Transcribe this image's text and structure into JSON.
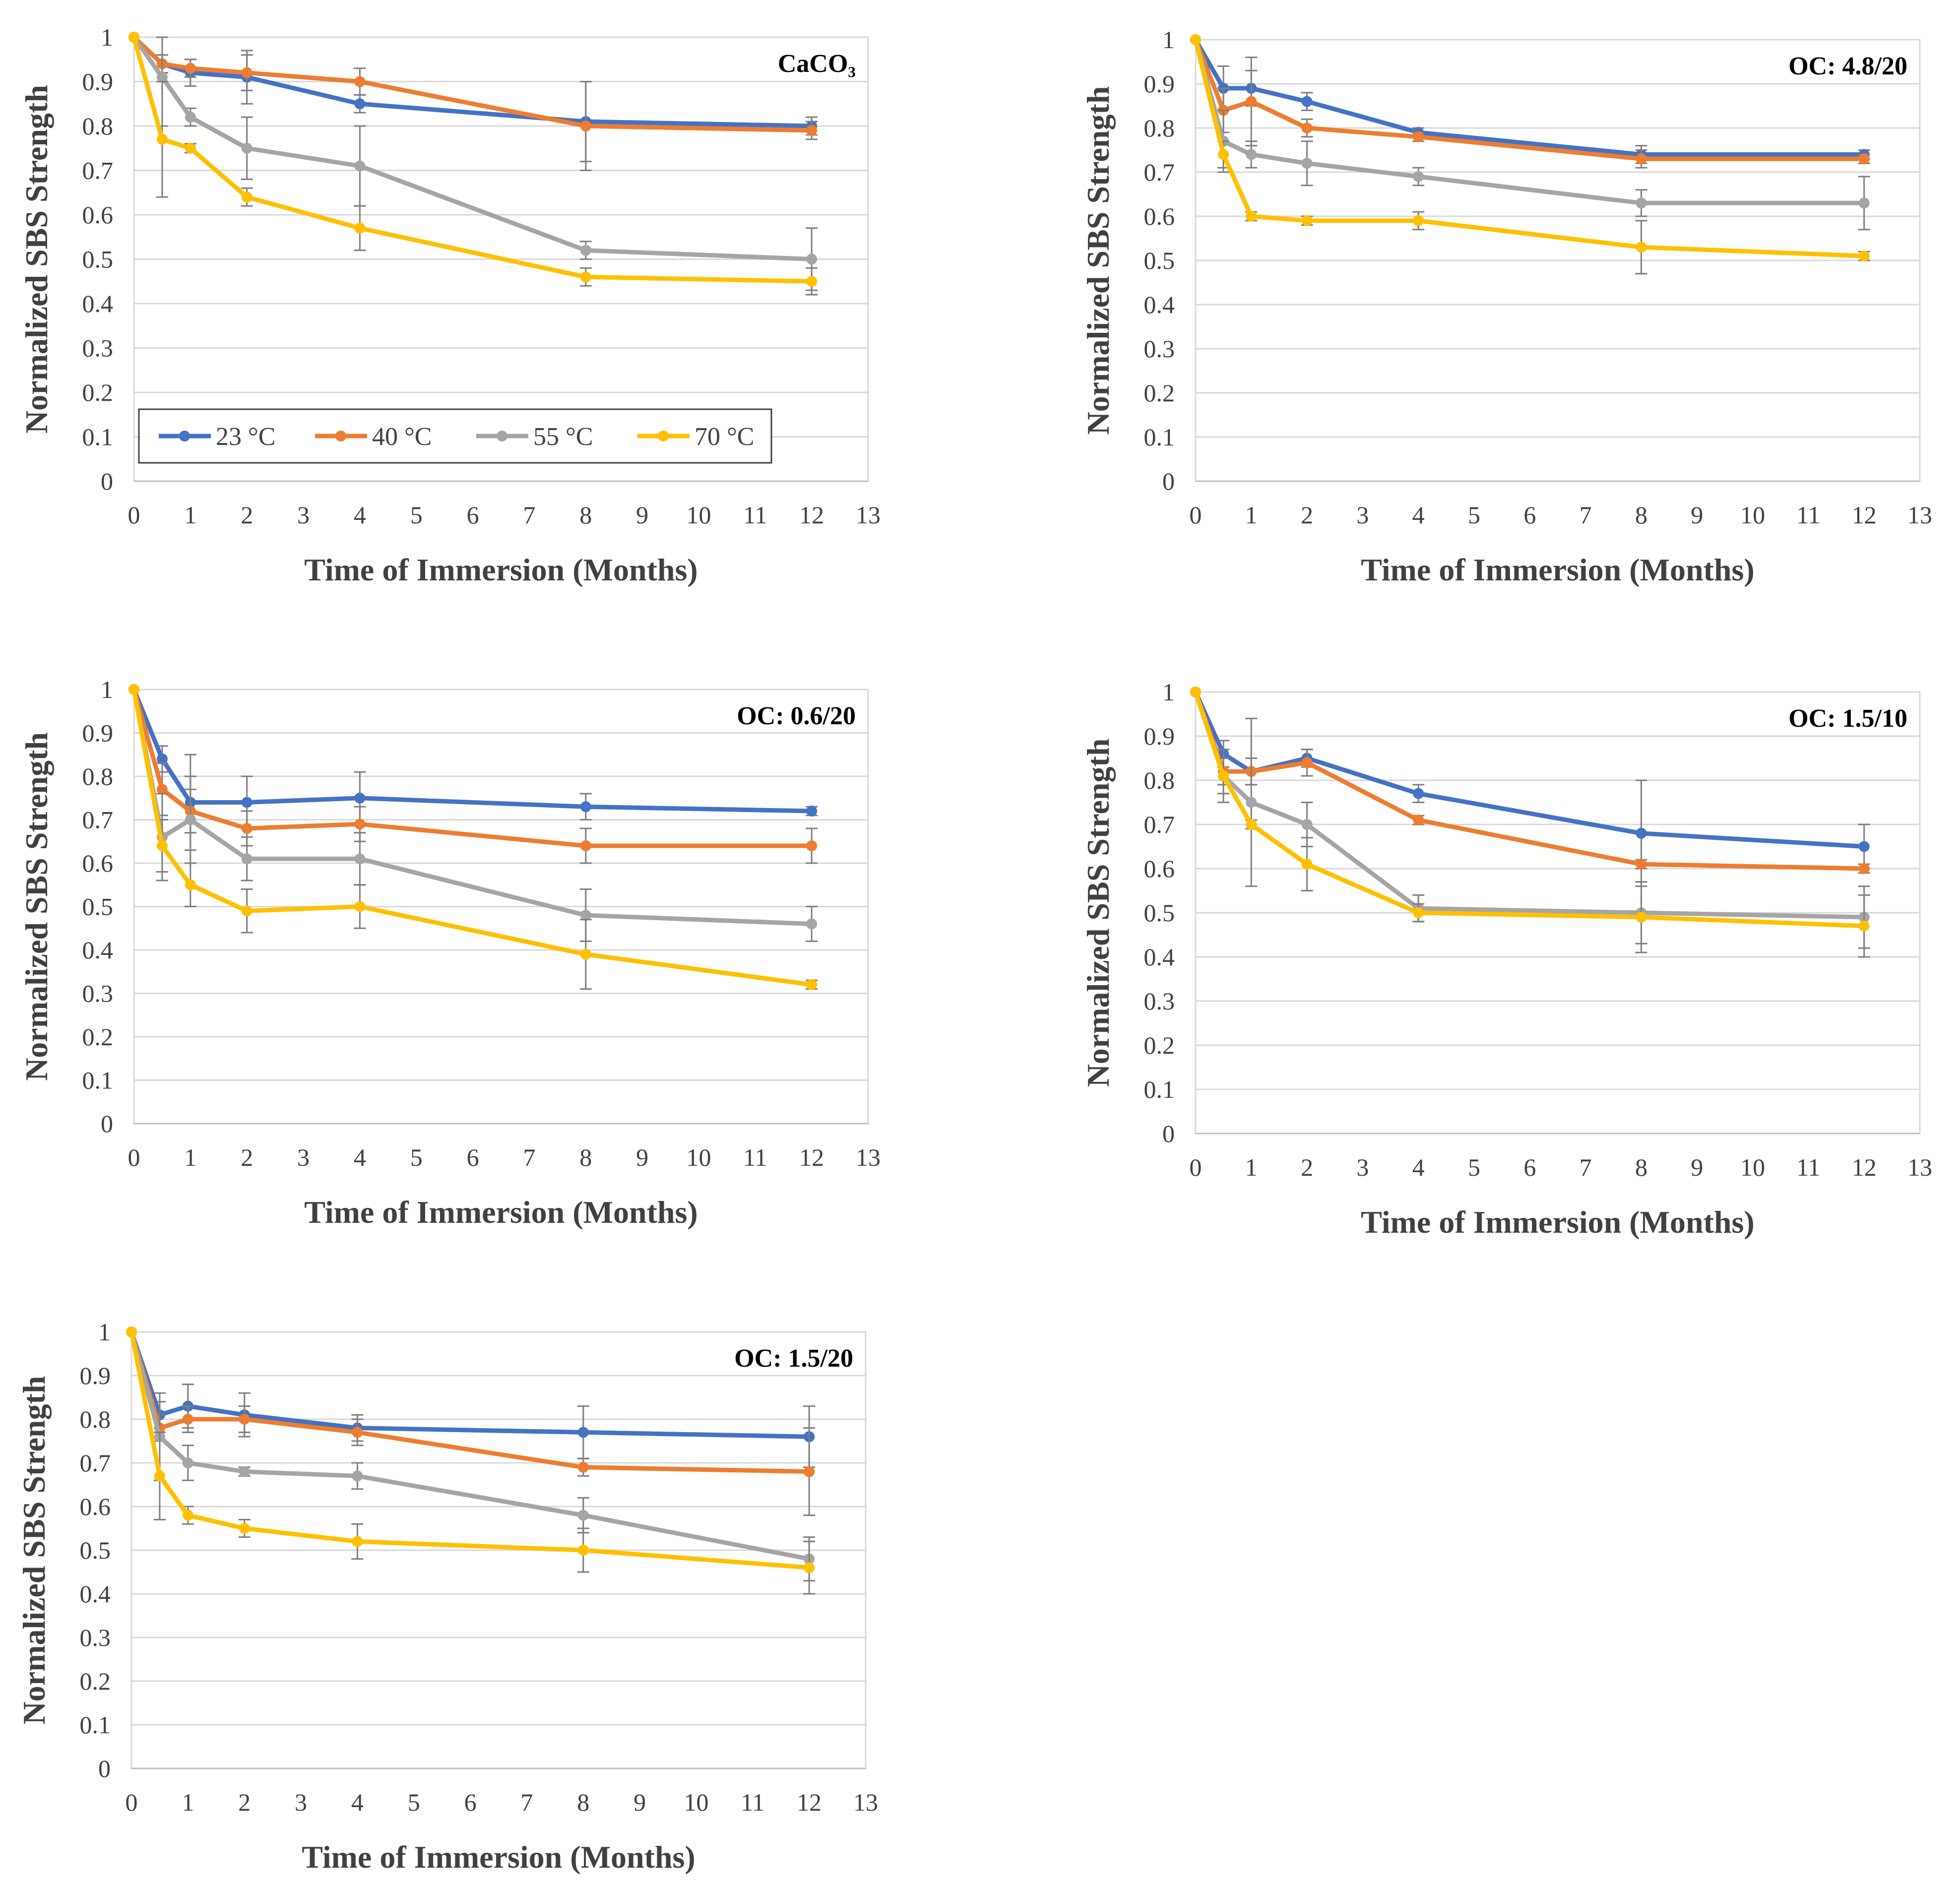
{
  "shared": {
    "x_axis_title": "Time of Immersion (Months)",
    "y_axis_title": "Normalized SBS Strength",
    "legend": [
      {
        "label": "23 °C",
        "color": "#4472C4"
      },
      {
        "label": "40 °C",
        "color": "#ED7D31"
      },
      {
        "label": "55 °C",
        "color": "#A5A5A5"
      },
      {
        "label": "70 °C",
        "color": "#FFC000"
      }
    ],
    "x_ticks": [
      "0",
      "1",
      "2",
      "3",
      "4",
      "5",
      "6",
      "7",
      "8",
      "9",
      "10",
      "11",
      "12",
      "13"
    ],
    "y_ticks": [
      "0",
      "0.1",
      "0.2",
      "0.3",
      "0.4",
      "0.5",
      "0.6",
      "0.7",
      "0.8",
      "0.9",
      "1"
    ]
  },
  "chart_data": [
    {
      "type": "line",
      "title": "CaCO₃",
      "xlabel": "Time of Immersion (Months)",
      "ylabel": "Normalized SBS Strength",
      "xlim": [
        0,
        13
      ],
      "ylim": [
        0,
        1
      ],
      "x": [
        0,
        0.5,
        1,
        2,
        4,
        8,
        12
      ],
      "legend_position": "bottom-left",
      "series": [
        {
          "name": "23 °C",
          "values": [
            1,
            0.94,
            0.92,
            0.91,
            0.85,
            0.81,
            0.8
          ],
          "errors": [
            0,
            0.02,
            0.03,
            0.06,
            0.02,
            0.09,
            0.02
          ]
        },
        {
          "name": "40 °C",
          "values": [
            1,
            0.94,
            0.93,
            0.92,
            0.9,
            0.8,
            0.79
          ],
          "errors": [
            0,
            0.02,
            0.02,
            0.04,
            0.03,
            0.1,
            0.02
          ]
        },
        {
          "name": "55 °C",
          "values": [
            1,
            0.91,
            0.82,
            0.75,
            0.71,
            0.52,
            0.5
          ],
          "errors": [
            0,
            0.11,
            0.02,
            0.07,
            0.09,
            0.02,
            0.07
          ]
        },
        {
          "name": "70 °C",
          "values": [
            1,
            0.77,
            0.75,
            0.64,
            0.57,
            0.46,
            0.45
          ],
          "errors": [
            0,
            0.13,
            0.01,
            0.02,
            0.05,
            0.02,
            0.03
          ]
        }
      ]
    },
    {
      "type": "line",
      "title": "OC: 4.8/20",
      "xlabel": "Time of Immersion (Months)",
      "ylabel": "Normalized SBS Strength",
      "xlim": [
        0,
        13
      ],
      "ylim": [
        0,
        1
      ],
      "x": [
        0,
        0.5,
        1,
        2,
        4,
        8,
        12
      ],
      "series": [
        {
          "name": "23 °C",
          "values": [
            1,
            0.89,
            0.89,
            0.86,
            0.79,
            0.74,
            0.74
          ],
          "errors": [
            0,
            0.05,
            0.04,
            0.02,
            0.01,
            0.02,
            0.01
          ]
        },
        {
          "name": "40 °C",
          "values": [
            1,
            0.84,
            0.86,
            0.8,
            0.78,
            0.73,
            0.73
          ],
          "errors": [
            0,
            0.05,
            0.1,
            0.02,
            0.01,
            0.02,
            0.01
          ]
        },
        {
          "name": "55 °C",
          "values": [
            1,
            0.77,
            0.74,
            0.72,
            0.69,
            0.63,
            0.63
          ],
          "errors": [
            0,
            0.07,
            0.03,
            0.05,
            0.02,
            0.03,
            0.06
          ]
        },
        {
          "name": "70 °C",
          "values": [
            1,
            0.74,
            0.6,
            0.59,
            0.59,
            0.53,
            0.51
          ],
          "errors": [
            0,
            0.03,
            0.01,
            0.01,
            0.02,
            0.06,
            0.01
          ]
        }
      ]
    },
    {
      "type": "line",
      "title": "OC: 0.6/20",
      "xlabel": "Time of Immersion (Months)",
      "ylabel": "Normalized SBS Strength",
      "xlim": [
        0,
        13
      ],
      "ylim": [
        0,
        1
      ],
      "x": [
        0,
        0.5,
        1,
        2,
        4,
        8,
        12
      ],
      "series": [
        {
          "name": "23 °C",
          "values": [
            1,
            0.84,
            0.74,
            0.74,
            0.75,
            0.73,
            0.72
          ],
          "errors": [
            0,
            0.03,
            0.11,
            0.06,
            0.06,
            0.03,
            0.01
          ]
        },
        {
          "name": "40 °C",
          "values": [
            1,
            0.77,
            0.72,
            0.68,
            0.69,
            0.64,
            0.64
          ],
          "errors": [
            0,
            0.06,
            0.05,
            0.04,
            0.04,
            0.04,
            0.04
          ]
        },
        {
          "name": "55 °C",
          "values": [
            1,
            0.66,
            0.7,
            0.61,
            0.61,
            0.48,
            0.46
          ],
          "errors": [
            0,
            0.1,
            0.1,
            0.05,
            0.06,
            0.06,
            0.04
          ]
        },
        {
          "name": "70 °C",
          "values": [
            1,
            0.64,
            0.55,
            0.49,
            0.5,
            0.39,
            0.32
          ],
          "errors": [
            0,
            0.06,
            0.05,
            0.05,
            0.05,
            0.08,
            0.01
          ]
        }
      ]
    },
    {
      "type": "line",
      "title": "OC: 1.5/10",
      "xlabel": "Time of Immersion (Months)",
      "ylabel": "Normalized SBS Strength",
      "xlim": [
        0,
        13
      ],
      "ylim": [
        0,
        1
      ],
      "x": [
        0,
        0.5,
        1,
        2,
        4,
        8,
        12
      ],
      "series": [
        {
          "name": "23 °C",
          "values": [
            1,
            0.86,
            0.82,
            0.85,
            0.77,
            0.68,
            0.65
          ],
          "errors": [
            0,
            0.03,
            0.03,
            0.02,
            0.02,
            0.12,
            0.05
          ]
        },
        {
          "name": "40 °C",
          "values": [
            1,
            0.82,
            0.82,
            0.84,
            0.71,
            0.61,
            0.6
          ],
          "errors": [
            0,
            0.03,
            0.03,
            0.03,
            0.01,
            0.01,
            0.01
          ]
        },
        {
          "name": "55 °C",
          "values": [
            1,
            0.81,
            0.75,
            0.7,
            0.51,
            0.5,
            0.49
          ],
          "errors": [
            0,
            0.06,
            0.19,
            0.05,
            0.03,
            0.07,
            0.07
          ]
        },
        {
          "name": "70 °C",
          "values": [
            1,
            0.81,
            0.7,
            0.61,
            0.5,
            0.49,
            0.47
          ],
          "errors": [
            0,
            0.04,
            0.01,
            0.06,
            0.02,
            0.08,
            0.07
          ]
        }
      ]
    },
    {
      "type": "line",
      "title": "OC: 1.5/20",
      "xlabel": "Time of Immersion (Months)",
      "ylabel": "Normalized SBS Strength",
      "xlim": [
        0,
        13
      ],
      "ylim": [
        0,
        1
      ],
      "x": [
        0,
        0.5,
        1,
        2,
        4,
        8,
        12
      ],
      "series": [
        {
          "name": "23 °C",
          "values": [
            1,
            0.81,
            0.83,
            0.81,
            0.78,
            0.77,
            0.76
          ],
          "errors": [
            0,
            0.03,
            0.05,
            0.05,
            0.03,
            0.06,
            0.07
          ]
        },
        {
          "name": "40 °C",
          "values": [
            1,
            0.78,
            0.8,
            0.8,
            0.77,
            0.69,
            0.68
          ],
          "errors": [
            0,
            0.03,
            0.03,
            0.03,
            0.03,
            0.02,
            0.1
          ]
        },
        {
          "name": "55 °C",
          "values": [
            1,
            0.76,
            0.7,
            0.68,
            0.67,
            0.58,
            0.48
          ],
          "errors": [
            0,
            0.1,
            0.04,
            0.01,
            0.03,
            0.04,
            0.05
          ]
        },
        {
          "name": "70 °C",
          "values": [
            1,
            0.67,
            0.58,
            0.55,
            0.52,
            0.5,
            0.46
          ],
          "errors": [
            0,
            0.1,
            0.02,
            0.02,
            0.04,
            0.05,
            0.06
          ]
        }
      ]
    }
  ]
}
